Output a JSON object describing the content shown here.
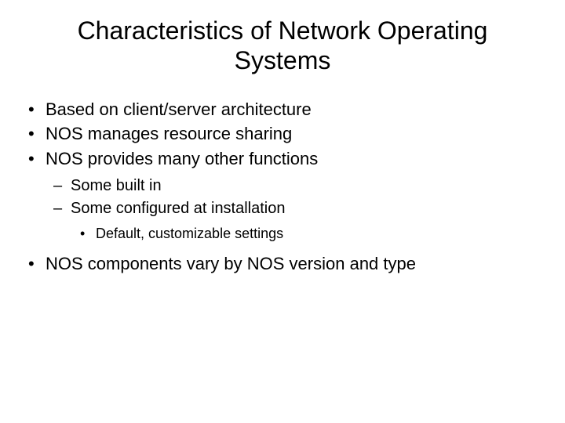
{
  "slide": {
    "title": "Characteristics of Network Operating Systems",
    "bullets": {
      "b1": "Based on client/server architecture",
      "b2": "NOS manages resource sharing",
      "b3": "NOS provides many other functions",
      "b3_1": "Some built in",
      "b3_2": "Some configured at installation",
      "b3_2_1": "Default, customizable settings",
      "b4": "NOS components vary by NOS version and type"
    }
  },
  "style": {
    "background_color": "#ffffff",
    "text_color": "#000000",
    "title_fontsize": 32,
    "level1_fontsize": 22,
    "level2_fontsize": 20,
    "level3_fontsize": 18,
    "font_family": "Arial"
  }
}
